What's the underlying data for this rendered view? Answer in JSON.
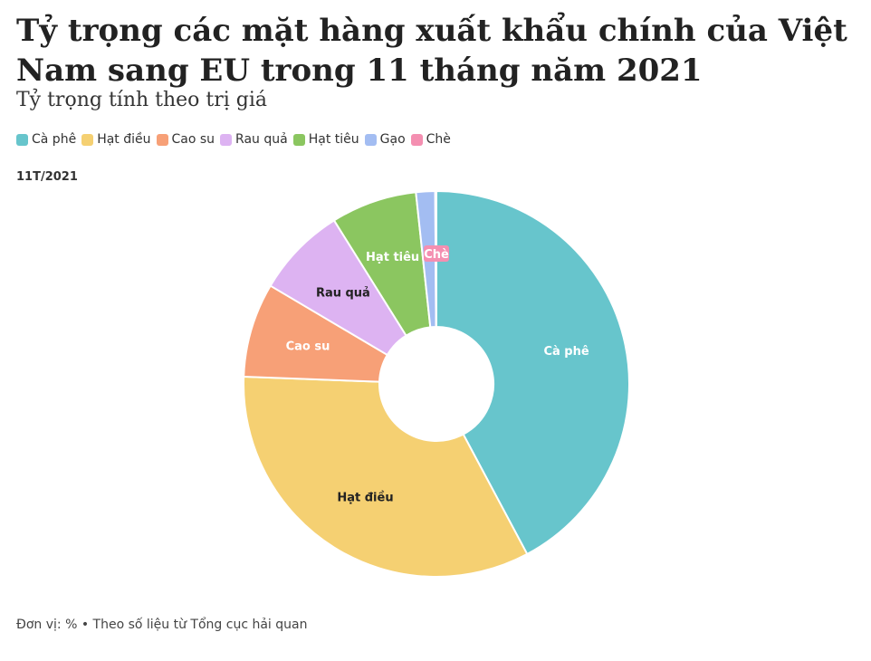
{
  "title": "Tỷ trọng các mặt hàng xuất khẩu chính của Việt Nam sang EU trong 11 tháng năm 2021",
  "subtitle": "Tỷ trọng tính theo trị giá",
  "period": "11T/2021",
  "footer": "Đơn vị: % • Theo số liệu từ Tổng cục hải quan",
  "chart_data": {
    "type": "pie",
    "donut": true,
    "legend_position": "top-left",
    "categories": [
      "Cà phê",
      "Hạt điều",
      "Cao su",
      "Rau quả",
      "Hạt tiêu",
      "Gạo",
      "Chè"
    ],
    "values": [
      42.2,
      33.4,
      7.9,
      7.6,
      7.2,
      1.6,
      0.1
    ],
    "colors": [
      "#67c5cc",
      "#f5d072",
      "#f7a077",
      "#ddb3f2",
      "#8bc660",
      "#a3bdf2",
      "#f48fb1"
    ],
    "slice_labels": [
      "Cà phê",
      "Hạt điều",
      "Cao su",
      "Rau quả",
      "Hạt tiêu",
      "",
      "Chè"
    ],
    "label_colors": [
      "#ffffff",
      "#222222",
      "#ffffff",
      "#222222",
      "#ffffff",
      "#222222",
      "#ffffff"
    ]
  }
}
